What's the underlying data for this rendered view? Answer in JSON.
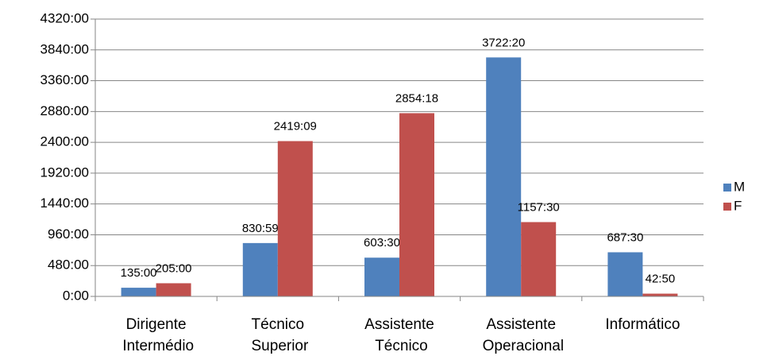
{
  "chart_data": {
    "type": "bar",
    "categories": [
      "Dirigente Intermédio",
      "Técnico Superior",
      "Assistente Técnico",
      "Assistente Operacional",
      "Informático"
    ],
    "series": [
      {
        "name": "M",
        "color": "#4f81bd",
        "values": [
          135,
          830.983,
          603.5,
          3722.333,
          687.5
        ],
        "value_labels": [
          "135:00",
          "830:59",
          "603:30",
          "3722:20",
          "687:30"
        ]
      },
      {
        "name": "F",
        "color": "#c0504d",
        "values": [
          205,
          2419.15,
          2854.3,
          1157.5,
          42.833
        ],
        "value_labels": [
          "205:00",
          "2419:09",
          "2854:18",
          "1157:30",
          "42:50"
        ]
      }
    ],
    "ylim": [
      0,
      4320
    ],
    "yticks": [
      {
        "value": 0,
        "label": "0:00"
      },
      {
        "value": 480,
        "label": "480:00"
      },
      {
        "value": 960,
        "label": "960:00"
      },
      {
        "value": 1440,
        "label": "1440:00"
      },
      {
        "value": 1920,
        "label": "1920:00"
      },
      {
        "value": 2400,
        "label": "2400:00"
      },
      {
        "value": 2880,
        "label": "2880:00"
      },
      {
        "value": 3360,
        "label": "3360:00"
      },
      {
        "value": 3840,
        "label": "3840:00"
      },
      {
        "value": 4320,
        "label": "4320:00"
      }
    ],
    "grid": true,
    "legend": "right"
  }
}
